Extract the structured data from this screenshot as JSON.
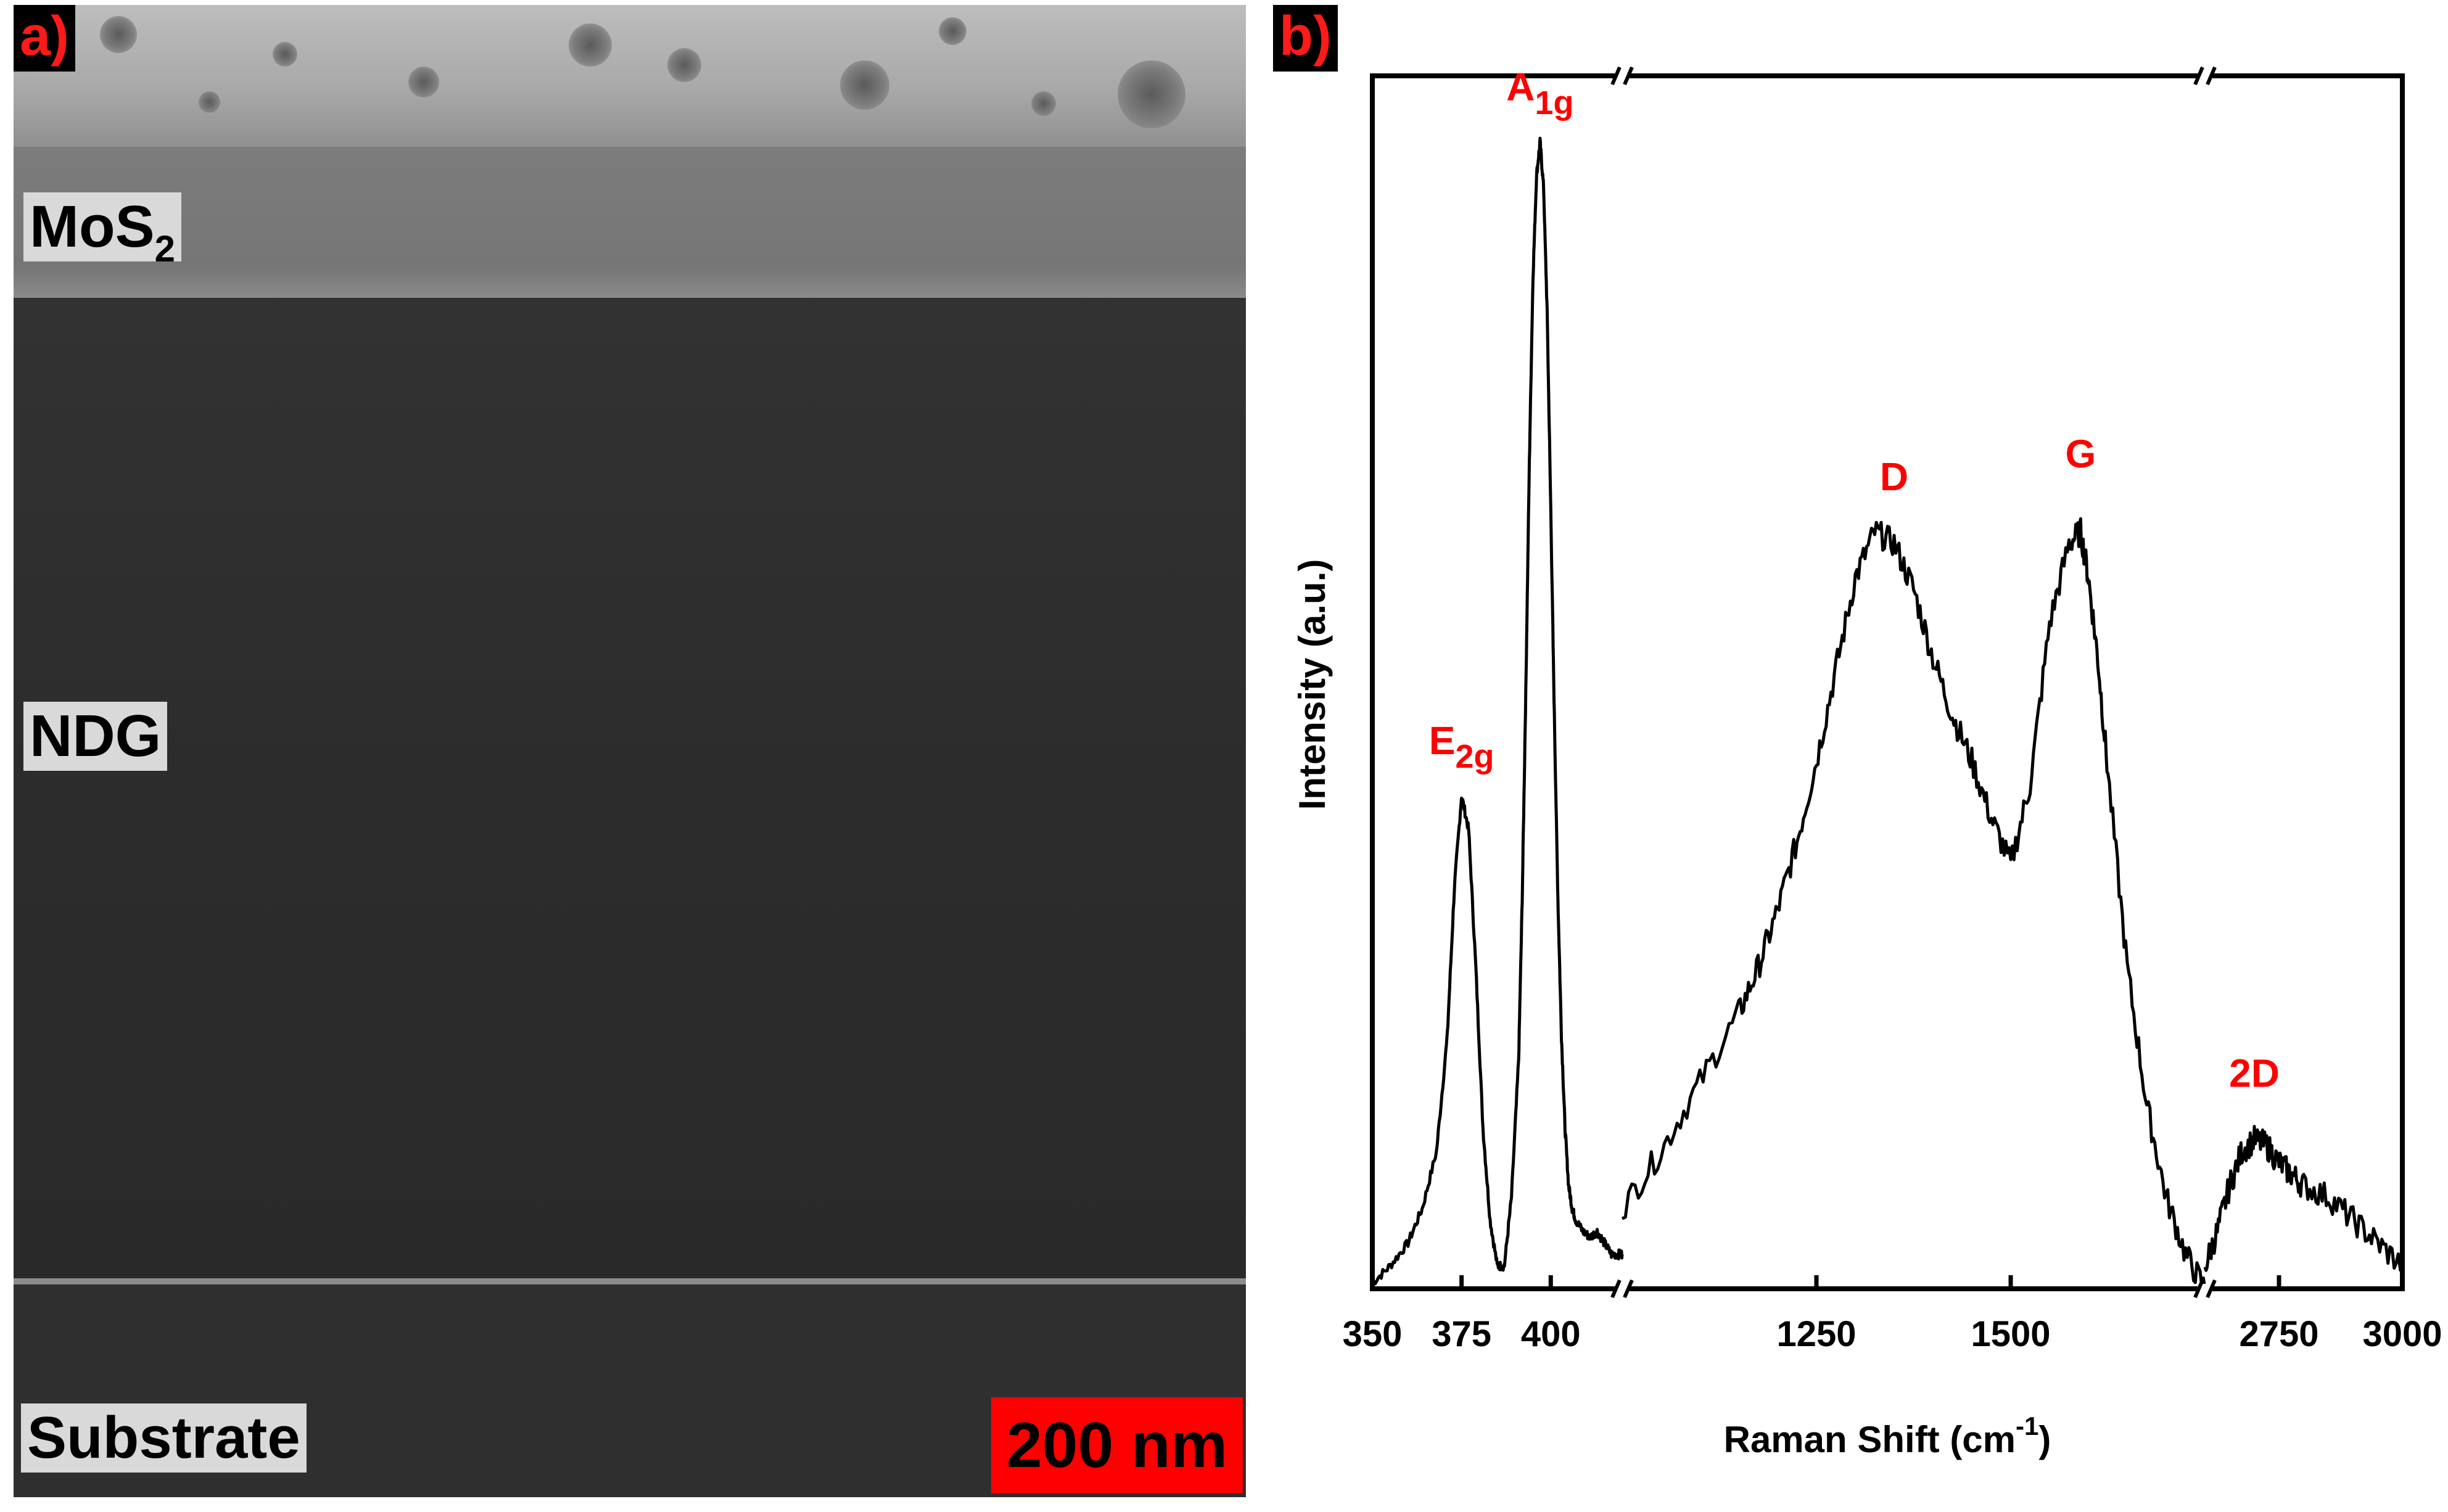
{
  "panel_a": {
    "letter": "a)",
    "labels": {
      "mos2_main": "MoS",
      "mos2_sub": "2",
      "ndg": "NDG",
      "substrate": "Substrate"
    },
    "scale_bar": "200 nm"
  },
  "panel_b": {
    "letter": "b)"
  },
  "chart_data": {
    "type": "line",
    "title": "",
    "xlabel": "Raman Shift (cm-1)",
    "xlabel_main": "Raman Shift (cm",
    "xlabel_sup": "-1",
    "xlabel_close": ")",
    "ylabel": "Intensity (a.u.)",
    "y_ticks_shown": false,
    "x_axis": "broken axis with three segments",
    "segments": [
      {
        "xlim": [
          350,
          420
        ],
        "ticks": [
          "350",
          "375",
          "400"
        ],
        "tick_values": [
          350,
          375,
          400
        ]
      },
      {
        "xlim": [
          1000,
          1750
        ],
        "ticks": [
          "1250",
          "1500"
        ],
        "tick_values": [
          1250,
          1500
        ]
      },
      {
        "xlim": [
          2600,
          3000
        ],
        "ticks": [
          "2750",
          "3000"
        ],
        "tick_values": [
          2750,
          3000
        ]
      }
    ],
    "ylim": [
      0,
      1
    ],
    "series": [
      {
        "segment": 0,
        "x": [
          350,
          355,
          360,
          364,
          368,
          371,
          373,
          375,
          377,
          379,
          381,
          383,
          385,
          387,
          389,
          391,
          392,
          393,
          394,
          395,
          396,
          397,
          398,
          399,
          400,
          401,
          402,
          403,
          404,
          405,
          406,
          407,
          409,
          411,
          413,
          415,
          417,
          419,
          420
        ],
        "y": [
          0.005,
          0.02,
          0.04,
          0.07,
          0.12,
          0.22,
          0.35,
          0.43,
          0.4,
          0.28,
          0.14,
          0.06,
          0.02,
          0.02,
          0.08,
          0.2,
          0.34,
          0.52,
          0.72,
          0.88,
          0.97,
          1.0,
          0.96,
          0.85,
          0.68,
          0.5,
          0.34,
          0.22,
          0.14,
          0.09,
          0.07,
          0.06,
          0.05,
          0.045,
          0.05,
          0.04,
          0.03,
          0.03,
          0.03
        ]
      },
      {
        "segment": 1,
        "x": [
          1000,
          1050,
          1100,
          1150,
          1175,
          1200,
          1225,
          1250,
          1275,
          1300,
          1325,
          1350,
          1375,
          1400,
          1425,
          1450,
          1475,
          1500,
          1525,
          1550,
          1575,
          1590,
          1600,
          1612,
          1625,
          1650,
          1675,
          1700,
          1725,
          1750
        ],
        "y": [
          0.07,
          0.12,
          0.18,
          0.24,
          0.28,
          0.33,
          0.39,
          0.46,
          0.54,
          0.62,
          0.66,
          0.65,
          0.61,
          0.55,
          0.5,
          0.46,
          0.41,
          0.37,
          0.44,
          0.58,
          0.65,
          0.66,
          0.62,
          0.55,
          0.45,
          0.28,
          0.16,
          0.08,
          0.03,
          0.0
        ]
      },
      {
        "segment": 2,
        "x": [
          2600,
          2625,
          2650,
          2675,
          2700,
          2725,
          2750,
          2775,
          2800,
          2850,
          2900,
          2950,
          3000
        ],
        "y": [
          0.02,
          0.05,
          0.09,
          0.12,
          0.13,
          0.125,
          0.11,
          0.1,
          0.09,
          0.08,
          0.06,
          0.04,
          0.02
        ]
      }
    ],
    "peak_labels": [
      {
        "name": "E2g",
        "main": "E",
        "sub": "2g",
        "x": 375
      },
      {
        "name": "A1g",
        "main": "A",
        "sub": "1g",
        "x": 397
      },
      {
        "name": "D",
        "main": "D",
        "sub": "",
        "x": 1350
      },
      {
        "name": "G",
        "main": "G",
        "sub": "",
        "x": 1590
      },
      {
        "name": "2D",
        "main": "2D",
        "sub": "",
        "x": 2700
      }
    ]
  }
}
